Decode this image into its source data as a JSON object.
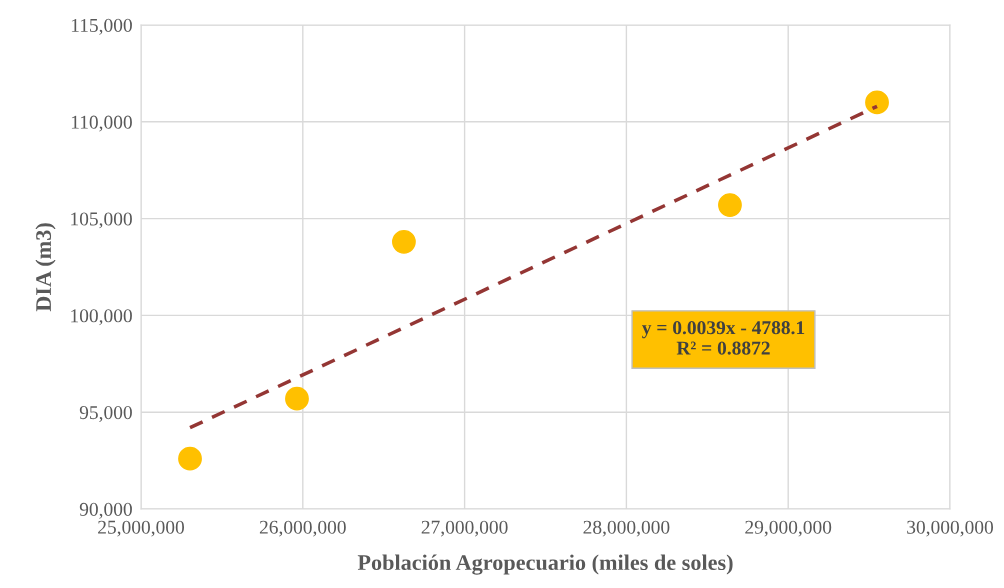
{
  "chart_data": {
    "type": "scatter",
    "xlabel": "Población Agropecuario (miles de soles)",
    "ylabel": "DIA (m3)",
    "series": [
      {
        "color": "#ffc000",
        "x": [
          25303000,
          25964000,
          26625000,
          28640000,
          29549000
        ],
        "values": [
          92600,
          95700,
          103800,
          105700,
          111000
        ],
        "marker": "circle"
      },
      {
        "type": "line",
        "color": "#943634",
        "x": [
          25303000,
          29549000
        ],
        "values": [
          94200,
          110800
        ],
        "line_style": "dashed",
        "marker": "none"
      }
    ],
    "xlim": [
      25000000,
      30000000
    ],
    "xticks": [
      {
        "value": 25000000,
        "label": "25,000,000"
      },
      {
        "value": 26000000,
        "label": "26,000,000"
      },
      {
        "value": 27000000,
        "label": "27,000,000"
      },
      {
        "value": 28000000,
        "label": "28,000,000"
      },
      {
        "value": 29000000,
        "label": "29,000,000"
      },
      {
        "value": 30000000,
        "label": "30,000,000"
      }
    ],
    "ylim": [
      90000,
      115000
    ],
    "yticks": [
      {
        "value": 90000,
        "label": "90,000"
      },
      {
        "value": 95000,
        "label": "95,000"
      },
      {
        "value": 100000,
        "label": "100,000"
      },
      {
        "value": 105000,
        "label": "105,000"
      },
      {
        "value": 110000,
        "label": "110,000"
      },
      {
        "value": 115000,
        "label": "115,000"
      }
    ],
    "grid": true,
    "annotations": [
      "y = 0.0039x - 4788.1\nR² = 0.8872"
    ]
  }
}
